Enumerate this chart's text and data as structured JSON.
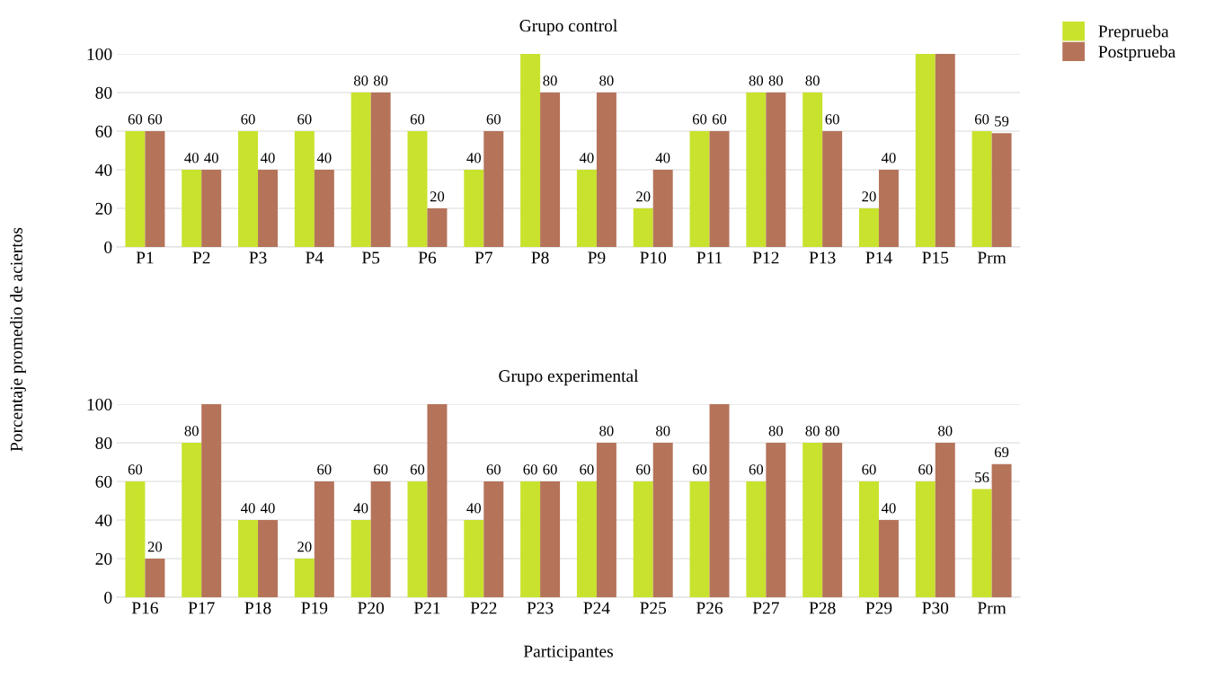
{
  "chart_data": [
    {
      "type": "bar",
      "title": "Grupo control",
      "ylabel": "Porcentaje promedio de aciertos",
      "categories": [
        "P1",
        "P2",
        "P3",
        "P4",
        "P5",
        "P6",
        "P7",
        "P8",
        "P9",
        "P10",
        "P11",
        "P12",
        "P13",
        "P14",
        "P15",
        "Prm"
      ],
      "series": [
        {
          "name": "Preprueba",
          "color": "#c9e22e",
          "values": [
            60,
            40,
            60,
            60,
            80,
            60,
            40,
            100,
            40,
            20,
            60,
            80,
            80,
            20,
            100,
            60
          ],
          "value_labels": [
            "60",
            "40",
            "60",
            "60",
            "80",
            "60",
            "40",
            null,
            "40",
            "20",
            "60",
            "80",
            "80",
            "20",
            null,
            "60"
          ]
        },
        {
          "name": "Postprueba",
          "color": "#b5735a",
          "values": [
            60,
            40,
            40,
            40,
            80,
            20,
            60,
            80,
            80,
            40,
            60,
            80,
            60,
            40,
            100,
            59
          ],
          "value_labels": [
            "60",
            "40",
            "40",
            "40",
            "80",
            "20",
            "60",
            "80",
            "80",
            "40",
            "60",
            "80",
            "60",
            "40",
            null,
            "59"
          ]
        }
      ],
      "ylim": [
        0,
        100
      ],
      "yticks": [
        0,
        20,
        40,
        60,
        80,
        100
      ],
      "grid": "y",
      "legend": "top right"
    },
    {
      "type": "bar",
      "title": "Grupo experimental",
      "xlabel": "Participantes",
      "categories": [
        "P16",
        "P17",
        "P18",
        "P19",
        "P20",
        "P21",
        "P22",
        "P23",
        "P24",
        "P25",
        "P26",
        "P27",
        "P28",
        "P29",
        "P30",
        "Prm"
      ],
      "series": [
        {
          "color": "#c9e22e",
          "values": [
            60,
            80,
            40,
            20,
            40,
            60,
            40,
            60,
            60,
            60,
            60,
            60,
            80,
            60,
            60,
            56
          ],
          "value_labels": [
            "60",
            "80",
            "40",
            "20",
            "40",
            "60",
            "40",
            "60",
            "60",
            "60",
            "60",
            "60",
            "80",
            "60",
            "60",
            "56"
          ]
        },
        {
          "color": "#b5735a",
          "values": [
            20,
            100,
            40,
            60,
            60,
            100,
            60,
            60,
            80,
            80,
            100,
            80,
            80,
            40,
            80,
            69
          ],
          "value_labels": [
            "20",
            null,
            "40",
            "60",
            "60",
            null,
            "60",
            "60",
            "80",
            "80",
            null,
            "80",
            "80",
            "40",
            "80",
            "69"
          ]
        }
      ],
      "ylim": [
        0,
        100
      ],
      "yticks": [
        0,
        20,
        40,
        60,
        80,
        100
      ],
      "grid": "y"
    }
  ]
}
